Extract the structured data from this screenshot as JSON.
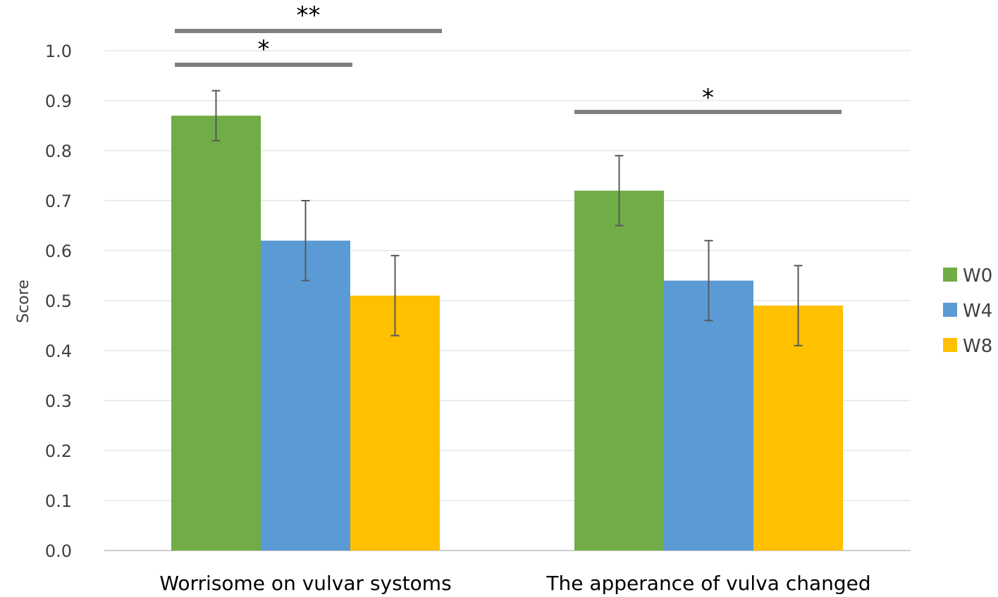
{
  "chart_data": {
    "type": "bar",
    "title": "",
    "xlabel": "",
    "ylabel": "Score",
    "ylim": [
      0,
      1.0
    ],
    "yticks": [
      "0.0",
      "0.1",
      "0.2",
      "0.3",
      "0.4",
      "0.5",
      "0.6",
      "0.7",
      "0.8",
      "0.9",
      "1.0"
    ],
    "grid": true,
    "legend_position": "right",
    "categories": [
      "Worrisome on vulvar systoms",
      "The apperance of vulva changed"
    ],
    "series": [
      {
        "name": "W0",
        "color": "#70AD47",
        "values": [
          0.87,
          0.72
        ],
        "errors": [
          0.05,
          0.07
        ]
      },
      {
        "name": "W4",
        "color": "#5B9BD5",
        "values": [
          0.62,
          0.54
        ],
        "errors": [
          0.08,
          0.08
        ]
      },
      {
        "name": "W8",
        "color": "#FFC000",
        "values": [
          0.51,
          0.49
        ],
        "errors": [
          0.08,
          0.08
        ]
      }
    ],
    "significance": [
      {
        "category": 0,
        "from_series": 0,
        "to_series": 2,
        "label": "**"
      },
      {
        "category": 0,
        "from_series": 0,
        "to_series": 1,
        "label": "*"
      },
      {
        "category": 1,
        "from_series": 0,
        "to_series": 2,
        "label": "*"
      }
    ]
  }
}
